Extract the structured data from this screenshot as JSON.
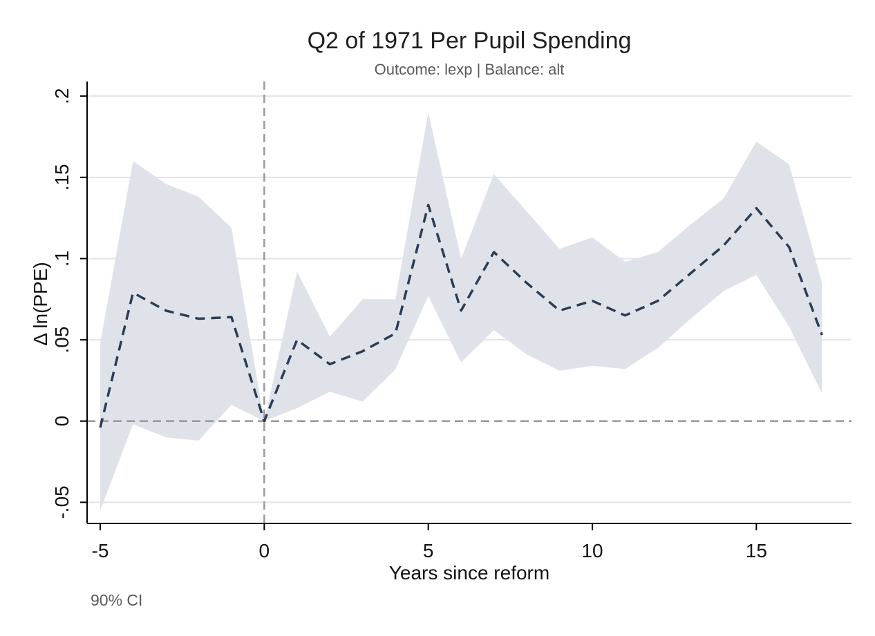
{
  "chart_data": {
    "type": "line",
    "title": "Q2 of 1971 Per Pupil Spending",
    "subtitle": "Outcome: lexp | Balance: alt",
    "xlabel": "Years since reform",
    "ylabel": "Δ ln(PPE)",
    "note": "90% CI",
    "xlim": [
      -5.4,
      17.9
    ],
    "ylim": [
      -0.063,
      0.209
    ],
    "x_ticks": [
      -5,
      0,
      5,
      10,
      15
    ],
    "x_tick_labels": [
      "-5",
      "0",
      "5",
      "10",
      "15"
    ],
    "y_ticks": [
      -0.05,
      0,
      0.05,
      0.1,
      0.15,
      0.2
    ],
    "y_tick_labels": [
      "-.05",
      "0",
      ".05",
      ".1",
      ".15",
      ".2"
    ],
    "grid": true,
    "reference_lines": {
      "x": 0,
      "y": 0
    },
    "x": [
      -5,
      -4,
      -3,
      -2,
      -1,
      0,
      1,
      2,
      3,
      4,
      5,
      6,
      7,
      8,
      9,
      10,
      11,
      12,
      13,
      14,
      15,
      16,
      17
    ],
    "series": [
      {
        "values": [
          -0.004,
          0.079,
          0.068,
          0.063,
          0.064,
          0.0,
          0.05,
          0.035,
          0.043,
          0.054,
          0.133,
          0.068,
          0.104,
          0.085,
          0.068,
          0.074,
          0.065,
          0.074,
          0.091,
          0.108,
          0.131,
          0.107,
          0.053
        ],
        "ci_lower": [
          -0.055,
          -0.002,
          -0.01,
          -0.012,
          0.01,
          0.0,
          0.008,
          0.018,
          0.012,
          0.032,
          0.077,
          0.036,
          0.056,
          0.041,
          0.031,
          0.034,
          0.032,
          0.045,
          0.063,
          0.08,
          0.09,
          0.058,
          0.017
        ],
        "ci_upper": [
          0.048,
          0.16,
          0.146,
          0.138,
          0.119,
          0.0,
          0.092,
          0.052,
          0.075,
          0.075,
          0.19,
          0.1,
          0.152,
          0.129,
          0.106,
          0.113,
          0.098,
          0.104,
          0.121,
          0.137,
          0.172,
          0.158,
          0.085
        ]
      }
    ],
    "colors": {
      "line": "#2b3d55",
      "ci_band": "#dfe3e9",
      "grid": "#e3e3e3",
      "reference": "#9a9a9a",
      "axis": "#000000"
    }
  }
}
